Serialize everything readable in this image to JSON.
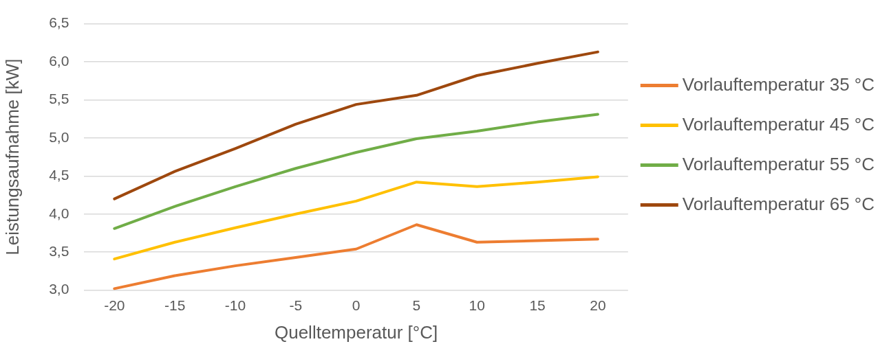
{
  "chart_data": {
    "type": "line",
    "xlabel": "Quelltemperatur [°C]",
    "ylabel": "Leistungsaufnahme [kW]",
    "categories": [
      "-20",
      "-15",
      "-10",
      "-5",
      "0",
      "5",
      "10",
      "15",
      "20"
    ],
    "series": [
      {
        "name": "Vorlauftemperatur 35 °C",
        "color": "#ed7d31",
        "values": [
          3.02,
          3.19,
          3.32,
          3.43,
          3.54,
          3.86,
          3.63,
          3.65,
          3.67
        ]
      },
      {
        "name": "Vorlauftemperatur 45 °C",
        "color": "#ffc000",
        "values": [
          3.41,
          3.63,
          3.82,
          4.0,
          4.17,
          4.42,
          4.36,
          4.42,
          4.49
        ]
      },
      {
        "name": "Vorlauftemperatur 55 °C",
        "color": "#70ad47",
        "values": [
          3.81,
          4.1,
          4.36,
          4.6,
          4.81,
          4.99,
          5.09,
          5.21,
          5.31
        ]
      },
      {
        "name": "Vorlauftemperatur 65 °C",
        "color": "#9e480e",
        "values": [
          4.2,
          4.56,
          4.86,
          5.18,
          5.44,
          5.56,
          5.82,
          5.98,
          6.13
        ]
      }
    ],
    "ylim": [
      3.0,
      6.5
    ],
    "yticks": [
      {
        "value": 3.0,
        "label": "3,0"
      },
      {
        "value": 3.5,
        "label": "3,5"
      },
      {
        "value": 4.0,
        "label": "4,0"
      },
      {
        "value": 4.5,
        "label": "4,5"
      },
      {
        "value": 5.0,
        "label": "5,0"
      },
      {
        "value": 5.5,
        "label": "5,5"
      },
      {
        "value": 6.0,
        "label": "6,0"
      },
      {
        "value": 6.5,
        "label": "6,5"
      }
    ],
    "grid": "y",
    "legend": "right",
    "marker": "none"
  }
}
